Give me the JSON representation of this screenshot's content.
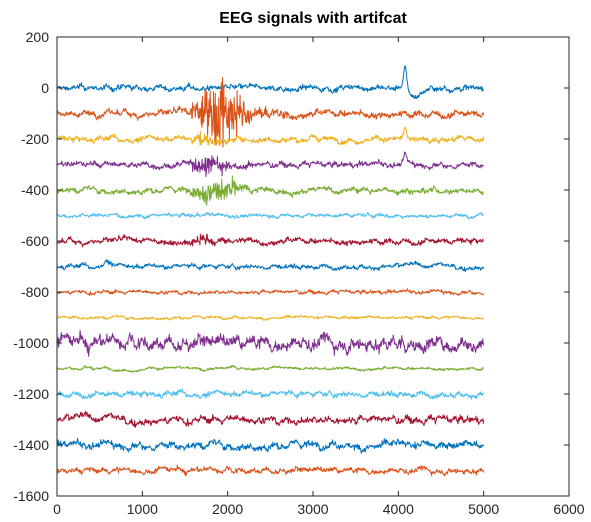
{
  "chart_data": {
    "type": "line",
    "title": "EEG signals with artifcat",
    "xlabel": "",
    "ylabel": "",
    "xlim": [
      0,
      6000
    ],
    "ylim": [
      -1600,
      200
    ],
    "grid": false,
    "legend": "none",
    "x_ticks": [
      0,
      1000,
      2000,
      3000,
      4000,
      5000,
      6000
    ],
    "y_ticks": [
      200,
      0,
      -200,
      -400,
      -600,
      -800,
      -1000,
      -1200,
      -1400,
      -1600
    ],
    "x_range_samples": [
      0,
      5000
    ],
    "series": [
      {
        "color": "#0072BD",
        "offset": 0,
        "noise": 6,
        "features": [
          {
            "x": 4080,
            "amp": 80,
            "type": "spike"
          },
          {
            "x": 4200,
            "amp": -35,
            "type": "dip"
          }
        ]
      },
      {
        "color": "#D95319",
        "offset": -100,
        "noise": 7,
        "features": [
          {
            "x_range": [
              1500,
              2700
            ],
            "amp": 110,
            "type": "burst"
          }
        ]
      },
      {
        "color": "#EDB120",
        "offset": -200,
        "noise": 6,
        "features": [
          {
            "x_range": [
              1550,
              2100
            ],
            "amp": 30,
            "type": "burst"
          },
          {
            "x": 4080,
            "amp": 30,
            "type": "spike"
          }
        ]
      },
      {
        "color": "#7E2F8E",
        "offset": -300,
        "noise": 6,
        "features": [
          {
            "x_range": [
              1500,
              2300
            ],
            "amp": 40,
            "type": "burst"
          },
          {
            "x": 4080,
            "amp": 35,
            "type": "spike"
          }
        ]
      },
      {
        "color": "#77AC30",
        "offset": -400,
        "noise": 6,
        "features": [
          {
            "x_range": [
              1500,
              2500
            ],
            "amp": 45,
            "type": "burst"
          }
        ]
      },
      {
        "color": "#4DBEEE",
        "offset": -500,
        "noise": 4,
        "features": []
      },
      {
        "color": "#A2142F",
        "offset": -600,
        "noise": 6,
        "features": [
          {
            "x_range": [
              1500,
              2100
            ],
            "amp": 22,
            "type": "burst"
          }
        ]
      },
      {
        "color": "#0072BD",
        "offset": -700,
        "noise": 5,
        "features": [
          {
            "x": 580,
            "amp": 25,
            "type": "bump"
          }
        ]
      },
      {
        "color": "#D95319",
        "offset": -800,
        "noise": 4,
        "features": []
      },
      {
        "color": "#EDB120",
        "offset": -900,
        "noise": 3,
        "features": []
      },
      {
        "color": "#7E2F8E",
        "offset": -1000,
        "noise": 14,
        "features": []
      },
      {
        "color": "#77AC30",
        "offset": -1100,
        "noise": 3,
        "features": []
      },
      {
        "color": "#4DBEEE",
        "offset": -1200,
        "noise": 6,
        "features": []
      },
      {
        "color": "#A2142F",
        "offset": -1300,
        "noise": 8,
        "features": []
      },
      {
        "color": "#0072BD",
        "offset": -1400,
        "noise": 8,
        "features": []
      },
      {
        "color": "#D95319",
        "offset": -1500,
        "noise": 6,
        "features": []
      }
    ]
  }
}
